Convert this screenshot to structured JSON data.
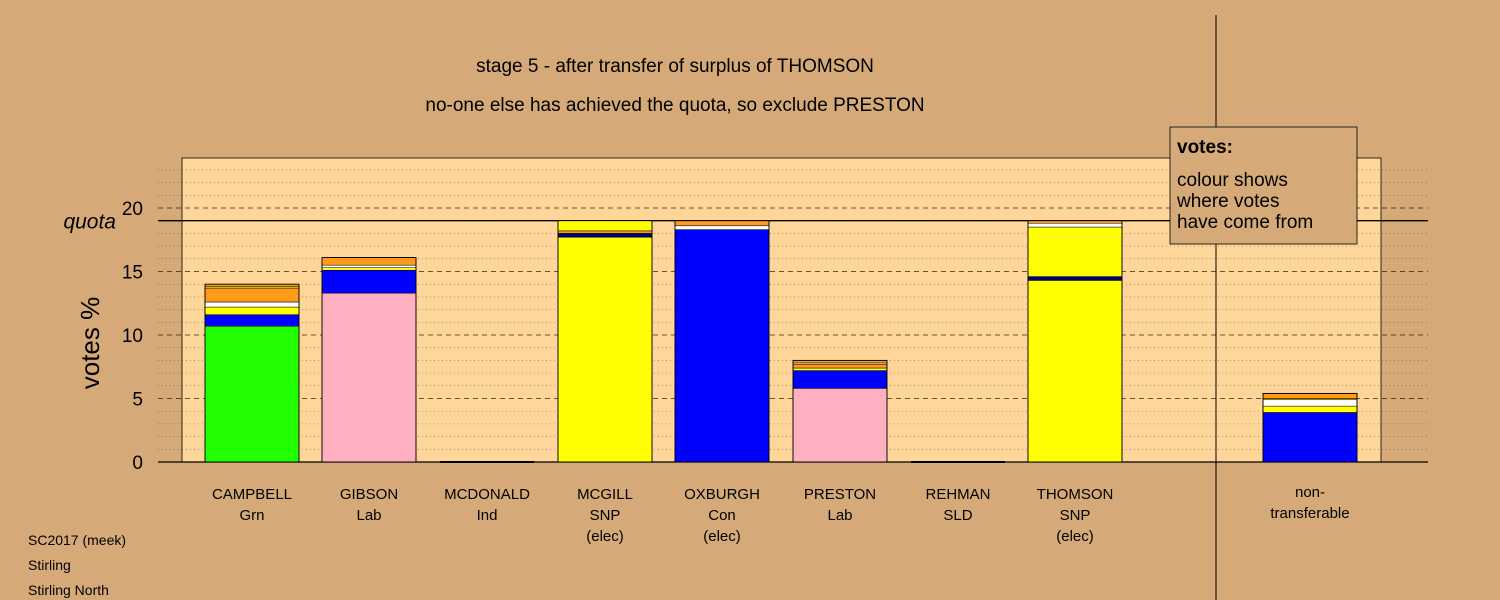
{
  "chart_data": {
    "type": "bar",
    "title": "stage 5 - after transfer of surplus of THOMSON",
    "subtitle": "no-one else has achieved the quota, so exclude PRESTON",
    "ylabel": "votes %",
    "ylim": [
      0,
      24
    ],
    "yticks": [
      0,
      5,
      10,
      15,
      20
    ],
    "quota_label": "quota",
    "quota": 19.0,
    "legend": {
      "title": "votes:",
      "lines": [
        "colour shows",
        "where votes",
        "have come from"
      ],
      "placement": "top-right"
    },
    "colors": {
      "Grn": "#22FF00",
      "Lab": "#FFB0C0",
      "SNP": "#FFFF00",
      "Con": "#0000FF",
      "Ind": "#FF9A1A",
      "SLD": "#FF9A1A",
      "white": "#FFFFFF",
      "line": "#000080",
      "plot_bg": "#FFD699"
    },
    "categories": [
      {
        "name": "CAMPBELL",
        "party": "Grn",
        "note": "",
        "segments": [
          {
            "source": "Grn",
            "value": 10.7
          },
          {
            "source": "Con",
            "value": 0.9
          },
          {
            "source": "SNP",
            "value": 0.6
          },
          {
            "source": "white",
            "value": 0.4
          },
          {
            "source": "Ind",
            "value": 1.1
          },
          {
            "source": "SNP",
            "value": 0.1
          },
          {
            "source": "Ind",
            "value": 0.2
          }
        ]
      },
      {
        "name": "GIBSON",
        "party": "Lab",
        "note": "",
        "segments": [
          {
            "source": "Lab",
            "value": 13.3
          },
          {
            "source": "Con",
            "value": 1.8
          },
          {
            "source": "SNP",
            "value": 0.2
          },
          {
            "source": "white",
            "value": 0.2
          },
          {
            "source": "Ind",
            "value": 0.6
          }
        ]
      },
      {
        "name": "MCDONALD",
        "party": "Ind",
        "note": "",
        "segments": []
      },
      {
        "name": "MCGILL",
        "party": "SNP",
        "note": "(elec)",
        "segments": [
          {
            "source": "SNP",
            "value": 17.7
          },
          {
            "source": "line",
            "value": 0.3
          },
          {
            "source": "Ind",
            "value": 0.2
          },
          {
            "source": "SNP",
            "value": 0.8
          }
        ]
      },
      {
        "name": "OXBURGH",
        "party": "Con",
        "note": "(elec)",
        "segments": [
          {
            "source": "Con",
            "value": 18.3
          },
          {
            "source": "white",
            "value": 0.3
          },
          {
            "source": "Ind",
            "value": 0.4
          }
        ]
      },
      {
        "name": "PRESTON",
        "party": "Lab",
        "note": "",
        "segments": [
          {
            "source": "Lab",
            "value": 5.8
          },
          {
            "source": "Con",
            "value": 1.4
          },
          {
            "source": "SNP",
            "value": 0.2
          },
          {
            "source": "Ind",
            "value": 0.3
          },
          {
            "source": "white",
            "value": 0.1
          },
          {
            "source": "Ind",
            "value": 0.2
          }
        ]
      },
      {
        "name": "REHMAN",
        "party": "SLD",
        "note": "",
        "segments": []
      },
      {
        "name": "THOMSON",
        "party": "SNP",
        "note": "(elec)",
        "segments": [
          {
            "source": "SNP",
            "value": 14.3
          },
          {
            "source": "line",
            "value": 0.3
          },
          {
            "source": "SNP",
            "value": 3.9
          },
          {
            "source": "white",
            "value": 0.3
          },
          {
            "source": "Ind",
            "value": 0.2
          }
        ]
      }
    ],
    "nontransferable": {
      "label": [
        "non-",
        "transferable"
      ],
      "segments": [
        {
          "source": "Con",
          "value": 3.9
        },
        {
          "source": "SNP",
          "value": 0.5
        },
        {
          "source": "white",
          "value": 0.5
        },
        {
          "source": "SNP",
          "value": 0.1
        },
        {
          "source": "Ind",
          "value": 0.4
        }
      ]
    }
  },
  "footer": {
    "line1": "SC2017 (meek)",
    "line2": "Stirling",
    "line3": "Stirling North"
  }
}
